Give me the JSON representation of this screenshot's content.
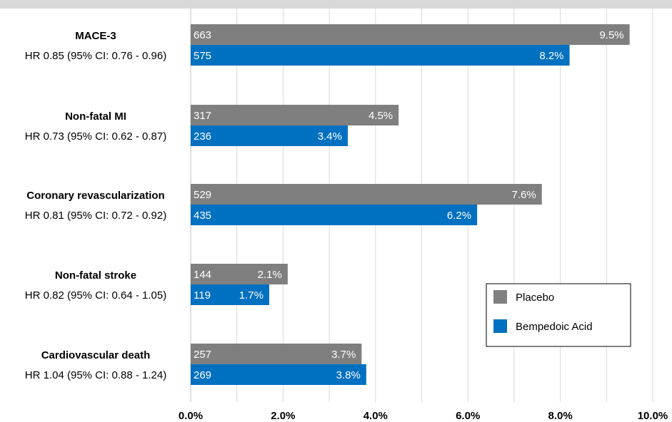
{
  "chart_data": {
    "type": "bar",
    "orientation": "horizontal",
    "title": "",
    "xlabel": "",
    "ylabel": "",
    "xlim": [
      0,
      10
    ],
    "x_ticks": [
      "0.0%",
      "2.0%",
      "4.0%",
      "6.0%",
      "8.0%",
      "10.0%"
    ],
    "grid": "vertical",
    "legend_position": "bottom-right inside plot",
    "categories": [
      {
        "title": "MACE-3",
        "subtitle": "HR 0.85 (95% CI: 0.76 - 0.96)"
      },
      {
        "title": "Non-fatal MI",
        "subtitle": "HR 0.73 (95% CI: 0.62 - 0.87)"
      },
      {
        "title": "Coronary revascularization",
        "subtitle": "HR 0.81 (95% CI: 0.72 - 0.92)"
      },
      {
        "title": "Non-fatal stroke",
        "subtitle": "HR 0.82 (95% CI: 0.64 - 1.05)"
      },
      {
        "title": "Cardiovascular death",
        "subtitle": "HR 1.04 (95% CI: 0.88 - 1.24)"
      }
    ],
    "series": [
      {
        "name": "Placebo",
        "color": "#7f7f7f",
        "values": [
          9.5,
          4.5,
          7.6,
          2.1,
          3.7
        ],
        "counts": [
          "663",
          "317",
          "529",
          "144",
          "257"
        ],
        "labels": [
          "9.5%",
          "4.5%",
          "7.6%",
          "2.1%",
          "3.7%"
        ]
      },
      {
        "name": "Bempedoic Acid",
        "color": "#0070c0",
        "values": [
          8.2,
          3.4,
          6.2,
          1.7,
          3.8
        ],
        "counts": [
          "575",
          "236",
          "435",
          "119",
          "269"
        ],
        "labels": [
          "8.2%",
          "3.4%",
          "6.2%",
          "1.7%",
          "3.8%"
        ]
      }
    ]
  }
}
